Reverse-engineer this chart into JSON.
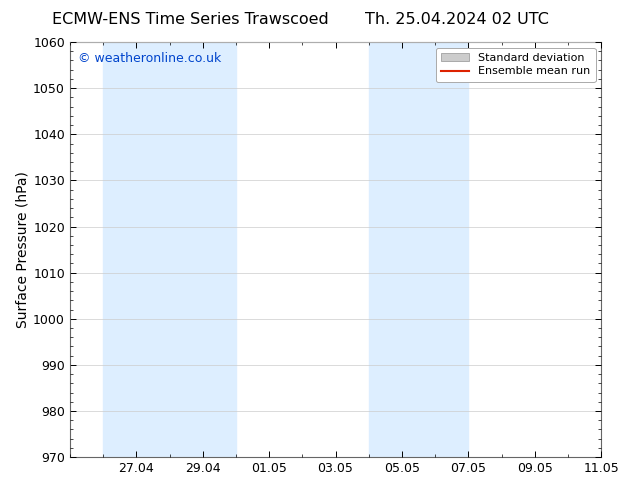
{
  "title_left": "ECMW-ENS Time Series Trawscoed",
  "title_right": "Th. 25.04.2024 02 UTC",
  "ylabel": "Surface Pressure (hPa)",
  "ylim": [
    970,
    1060
  ],
  "yticks": [
    970,
    980,
    990,
    1000,
    1010,
    1020,
    1030,
    1040,
    1050,
    1060
  ],
  "xtick_labels": [
    "27.04",
    "29.04",
    "01.05",
    "03.05",
    "05.05",
    "07.05",
    "09.05",
    "11.05"
  ],
  "xtick_positions": [
    2.0,
    4.0,
    6.0,
    8.0,
    10.0,
    12.0,
    14.0,
    16.0
  ],
  "xlim": [
    0,
    16
  ],
  "shade_bands": [
    {
      "x_start": 1.0,
      "x_end": 3.0
    },
    {
      "x_start": 3.0,
      "x_end": 5.0
    },
    {
      "x_start": 9.0,
      "x_end": 11.0
    },
    {
      "x_start": 11.0,
      "x_end": 12.0
    }
  ],
  "shade_color": "#ddeeff",
  "watermark_text": "© weatheronline.co.uk",
  "watermark_color": "#0044cc",
  "legend_std_label": "Standard deviation",
  "legend_mean_label": "Ensemble mean run",
  "legend_std_color": "#cccccc",
  "legend_std_edge": "#aaaaaa",
  "legend_mean_color": "#dd2200",
  "background_color": "#ffffff",
  "grid_color": "#cccccc",
  "spine_color": "#666666",
  "title_fontsize": 11.5,
  "ylabel_fontsize": 10,
  "tick_fontsize": 9,
  "watermark_fontsize": 9,
  "legend_fontsize": 8
}
